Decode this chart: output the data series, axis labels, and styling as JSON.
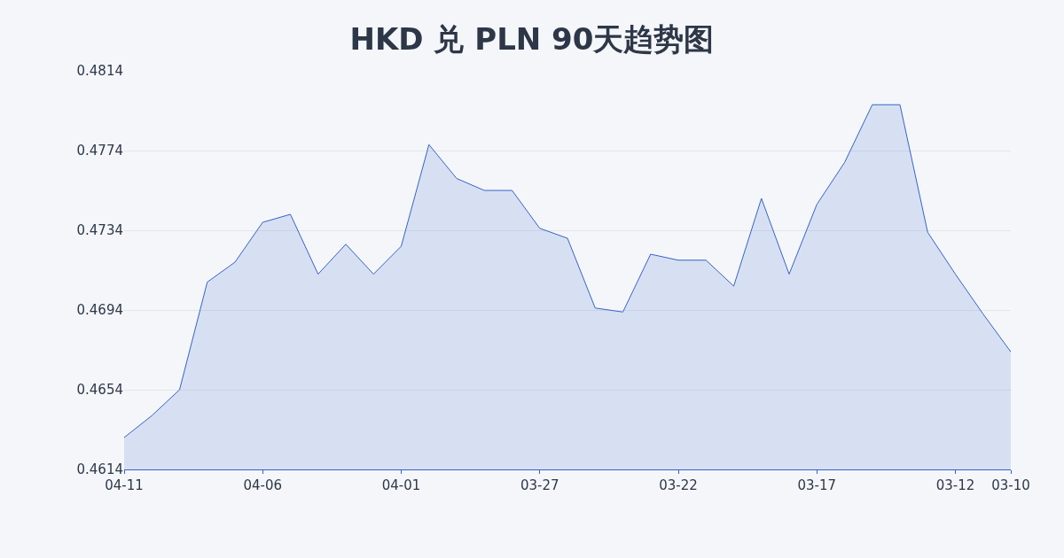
{
  "chart_data": {
    "type": "area",
    "title": "HKD 兑 PLN 90天趋势图",
    "x": [
      "--04-11",
      "--04-10",
      "--04-09",
      "--04-08",
      "--04-07",
      "--04-06",
      "--04-05",
      "--04-04",
      "--04-03",
      "--04-02",
      "--04-01",
      "--03-31",
      "--03-30",
      "--03-29",
      "--03-28",
      "--03-27",
      "--03-26",
      "--03-25",
      "--03-24",
      "--03-23",
      "--03-22",
      "--03-21",
      "--03-20",
      "--03-19",
      "--03-18",
      "--03-17",
      "--03-16",
      "--03-15",
      "--03-14",
      "--03-13",
      "--03-12",
      "--03-11",
      "--03-10"
    ],
    "series": [
      {
        "color": "#3563c9",
        "values": [
          0.463,
          0.4641,
          0.4654,
          0.4708,
          0.4718,
          0.4738,
          0.4742,
          0.4712,
          0.4727,
          0.4712,
          0.4726,
          0.4777,
          0.476,
          0.4754,
          0.4754,
          0.4735,
          0.473,
          0.4695,
          0.4693,
          0.4722,
          0.4719,
          0.4719,
          0.4706,
          0.475,
          0.4712,
          0.4747,
          0.4768,
          0.4797,
          0.4797,
          0.4733,
          0.4712,
          0.4692,
          0.4673
        ]
      }
    ],
    "xlim": [
      "--04-11",
      "--03-10"
    ],
    "xticks": [
      {
        "value": "--04-11",
        "label": "04-11"
      },
      {
        "value": "--04-06",
        "label": "04-06"
      },
      {
        "value": "--04-01",
        "label": "04-01"
      },
      {
        "value": "--03-27",
        "label": "03-27"
      },
      {
        "value": "--03-22",
        "label": "03-22"
      },
      {
        "value": "--03-17",
        "label": "03-17"
      },
      {
        "value": "--03-12",
        "label": "03-12"
      },
      {
        "value": "--03-10",
        "label": "03-10"
      }
    ],
    "ylim": [
      0.4614,
      0.4814
    ],
    "yticks": [
      0.4614,
      0.4654,
      0.4694,
      0.4734,
      0.4774,
      0.4814
    ],
    "grid": "y",
    "marker": "none",
    "line_style": "solid"
  }
}
